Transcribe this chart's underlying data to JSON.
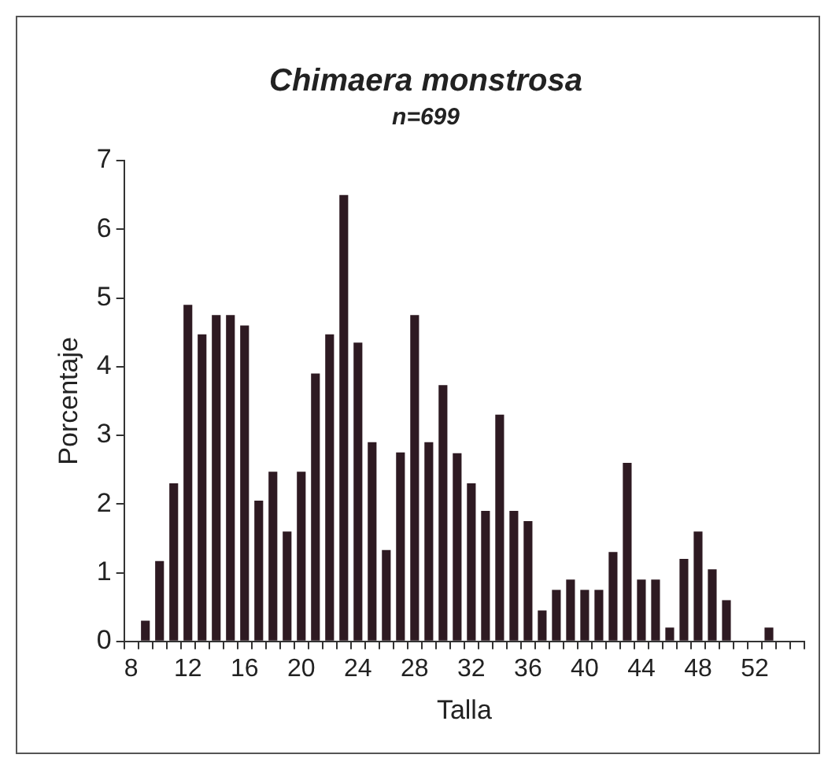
{
  "chart_data": {
    "type": "bar",
    "title": "Chimaera monstrosa",
    "subtitle": "n=699",
    "xlabel": "Talla",
    "ylabel": "Porcentaje",
    "categories": [
      "8",
      null,
      null,
      null,
      "12",
      null,
      null,
      null,
      "16",
      null,
      null,
      null,
      "20",
      null,
      null,
      null,
      "24",
      null,
      null,
      null,
      "28",
      null,
      null,
      null,
      "32",
      null,
      null,
      null,
      "36",
      null,
      null,
      null,
      "40",
      null,
      null,
      null,
      "44",
      null,
      null,
      null,
      "48",
      null,
      null,
      null,
      "52",
      null,
      null,
      null
    ],
    "values": [
      0,
      0.3,
      1.17,
      2.3,
      4.9,
      4.47,
      4.75,
      4.75,
      4.6,
      2.05,
      2.47,
      1.6,
      2.47,
      3.9,
      4.47,
      6.5,
      4.35,
      2.9,
      1.33,
      2.75,
      4.75,
      2.9,
      3.73,
      2.74,
      2.3,
      1.9,
      3.3,
      1.9,
      1.75,
      0.45,
      0.75,
      0.9,
      0.75,
      0.75,
      1.3,
      2.6,
      0.9,
      0.9,
      0.2,
      1.2,
      1.6,
      1.05,
      0.6,
      0,
      0,
      0.2,
      0,
      0
    ],
    "color": "#2e1a22",
    "ylim": [
      0,
      7
    ],
    "yticks": [
      0,
      1,
      2,
      3,
      4,
      5,
      6,
      7
    ],
    "grid": false,
    "legend": false
  }
}
